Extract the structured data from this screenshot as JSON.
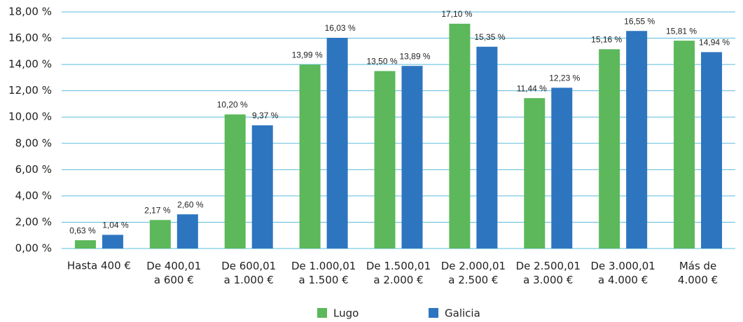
{
  "chart_data": {
    "type": "bar",
    "categories": [
      "Hasta 400 €",
      "De 400,01\na 600 €",
      "De 600,01\na 1.000 €",
      "De 1.000,01\na 1.500 €",
      "De 1.500,01\na 2.000 €",
      "De 2.000,01\na 2.500 €",
      "De 2.500,01\na 3.000 €",
      "De 3.000,01\na 4.000 €",
      "Más de\n4.000 €"
    ],
    "series": [
      {
        "name": "Lugo",
        "color": "#5cb85a",
        "values": [
          0.63,
          2.17,
          10.2,
          13.99,
          13.5,
          17.1,
          11.44,
          15.16,
          15.81
        ],
        "value_labels": [
          "0,63 %",
          "2,17 %",
          "10,20 %",
          "13,99 %",
          "13,50 %",
          "17,10 %",
          "11,44 %",
          "15,16 %",
          "15,81 %"
        ]
      },
      {
        "name": "Galicia",
        "color": "#2e75c0",
        "values": [
          1.04,
          2.6,
          9.37,
          16.03,
          13.89,
          15.35,
          12.23,
          16.55,
          14.94
        ],
        "value_labels": [
          "1,04 %",
          "2,60 %",
          "9,37 %",
          "16,03 %",
          "13,89 %",
          "15,35 %",
          "12,23 %",
          "16,55 %",
          "14,94 %"
        ]
      }
    ],
    "ylim": [
      0,
      18
    ],
    "yticks": [
      {
        "value": 0,
        "label": "0,00 %"
      },
      {
        "value": 2,
        "label": "2,00 %"
      },
      {
        "value": 4,
        "label": "4,00 %"
      },
      {
        "value": 6,
        "label": "6,00 %"
      },
      {
        "value": 8,
        "label": "8,00 %"
      },
      {
        "value": 10,
        "label": "10,00 %"
      },
      {
        "value": 12,
        "label": "12,00 %"
      },
      {
        "value": 14,
        "label": "14,00 %"
      },
      {
        "value": 16,
        "label": "16,00 %"
      },
      {
        "value": 18,
        "label": "18,00 %"
      }
    ],
    "grid": true,
    "legend": "bottom"
  }
}
